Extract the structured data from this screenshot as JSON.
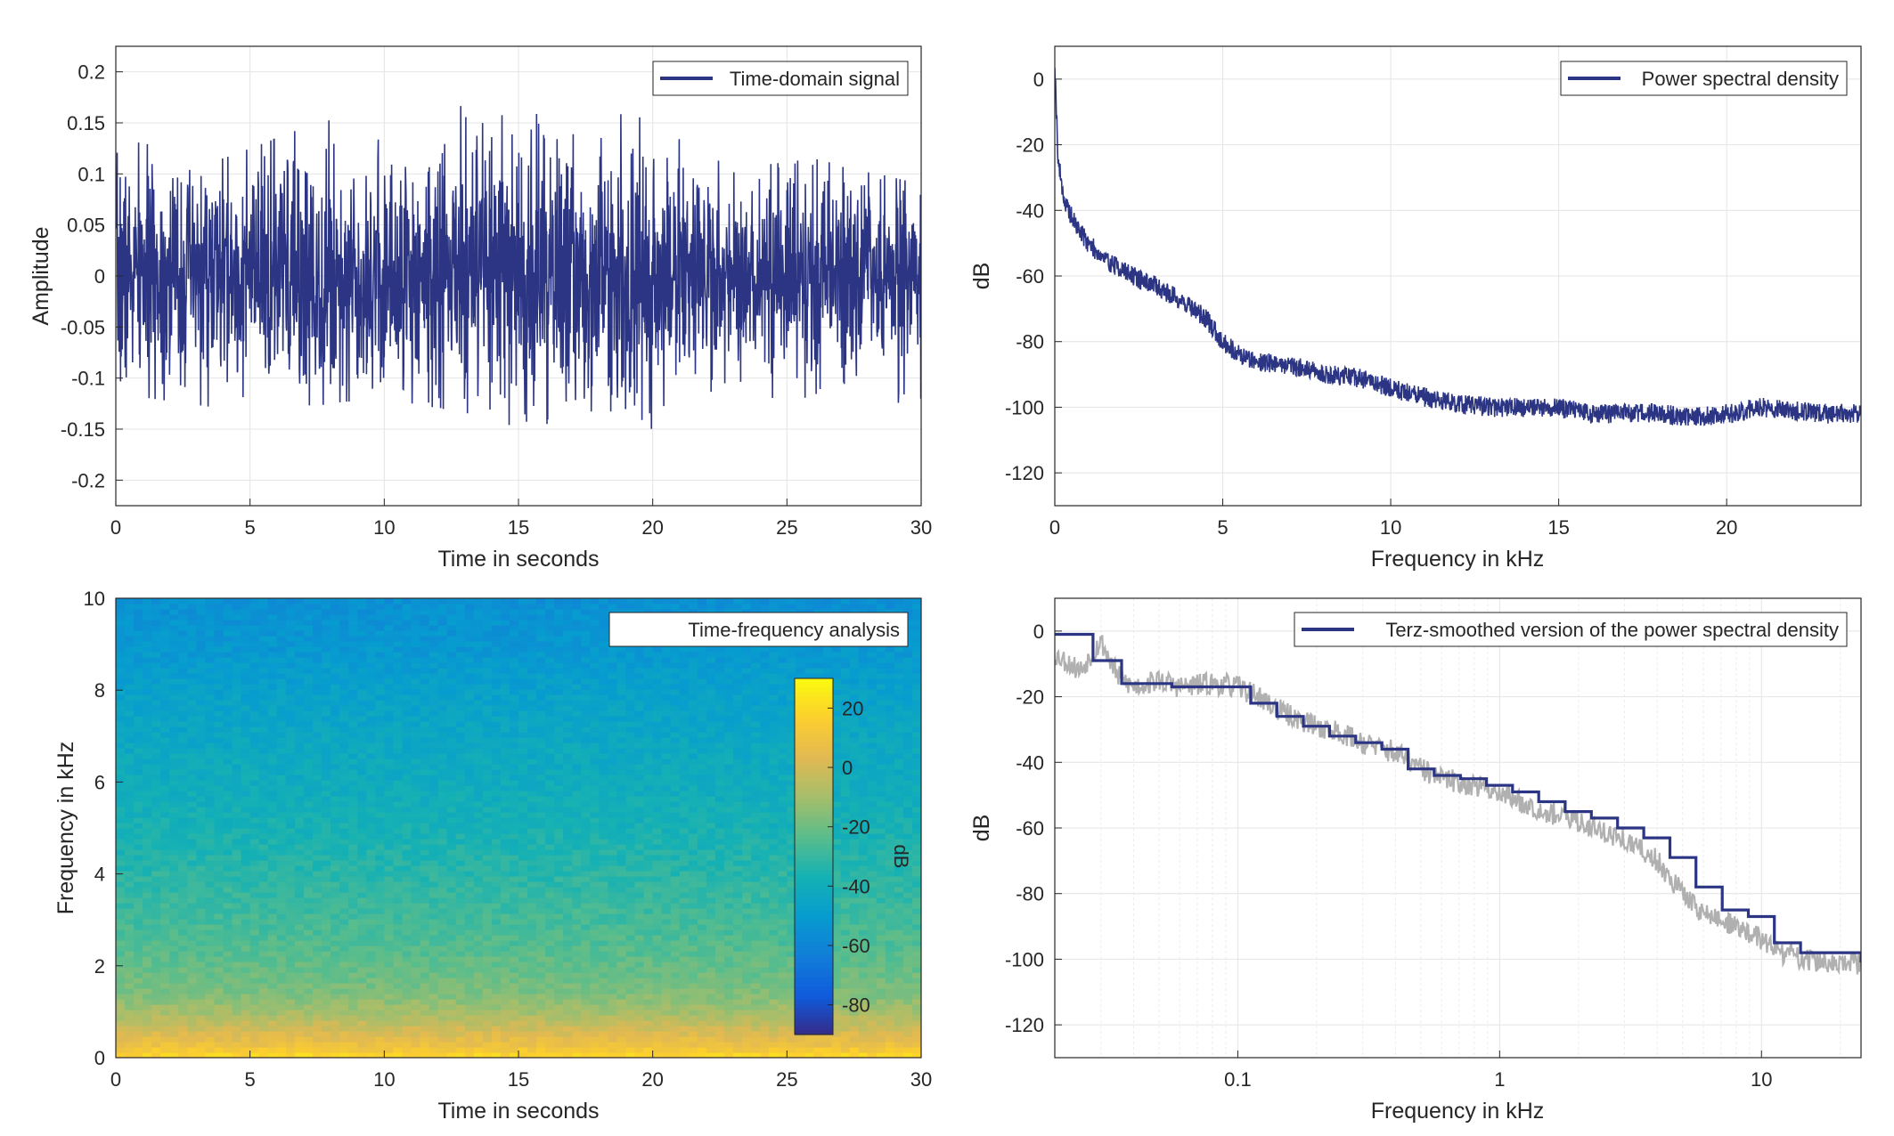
{
  "chart_data": [
    {
      "type": "line",
      "position": "top-left",
      "xlabel": "Time in seconds",
      "ylabel": "Amplitude",
      "xlim": [
        0,
        30
      ],
      "ylim": [
        -0.225,
        0.225
      ],
      "x_ticks": [
        "0",
        "5",
        "10",
        "15",
        "20",
        "25",
        "30"
      ],
      "y_ticks": [
        "-0.2",
        "-0.15",
        "-0.1",
        "-0.05",
        "0",
        "0.05",
        "0.1",
        "0.15",
        "0.2"
      ],
      "grid": true,
      "legend_position": "top-right",
      "series": [
        {
          "name": "Time-domain signal",
          "color": "#2b3583",
          "description_of_values": "noise-like signal, values mostly within about ±0.1, peaks reaching about 0.185 and -0.16",
          "envelope": [
            {
              "t": 0.0,
              "max": 0.135,
              "min": -0.115
            },
            {
              "t": 4.0,
              "max": 0.115,
              "min": -0.13
            },
            {
              "t": 6.5,
              "max": 0.14,
              "min": -0.145
            },
            {
              "t": 7.8,
              "max": 0.165,
              "min": -0.125
            },
            {
              "t": 10.0,
              "max": 0.13,
              "min": -0.12
            },
            {
              "t": 13.2,
              "max": 0.185,
              "min": -0.135
            },
            {
              "t": 16.5,
              "max": 0.15,
              "min": -0.16
            },
            {
              "t": 19.2,
              "max": 0.16,
              "min": -0.162
            },
            {
              "t": 23.0,
              "max": 0.105,
              "min": -0.1
            },
            {
              "t": 26.0,
              "max": 0.115,
              "min": -0.14
            },
            {
              "t": 30.0,
              "max": 0.09,
              "min": -0.12
            }
          ]
        }
      ]
    },
    {
      "type": "line",
      "position": "top-right",
      "xlabel": "Frequency in kHz",
      "ylabel": "dB",
      "xlim": [
        0,
        24
      ],
      "ylim": [
        -130,
        10
      ],
      "x_ticks": [
        "0",
        "5",
        "10",
        "15",
        "20"
      ],
      "y_ticks": [
        "-120",
        "-100",
        "-80",
        "-60",
        "-40",
        "-20",
        "0"
      ],
      "grid": true,
      "legend_position": "top-right",
      "series": [
        {
          "name": "Power spectral density",
          "color": "#2b3583",
          "x": [
            0,
            0.1,
            0.3,
            0.6,
            1.0,
            1.5,
            2.0,
            2.5,
            3.0,
            3.5,
            4.0,
            4.5,
            5.0,
            5.5,
            6.0,
            7.0,
            8.0,
            9.0,
            10.0,
            11.0,
            12.0,
            13.0,
            14.0,
            15.0,
            16.0,
            17.0,
            18.0,
            19.0,
            20.0,
            21.0,
            22.0,
            23.0,
            24.0
          ],
          "y": [
            5,
            -25,
            -38,
            -44,
            -50,
            -55,
            -58,
            -61,
            -63,
            -66,
            -69,
            -73,
            -80,
            -84,
            -86,
            -87,
            -90,
            -91,
            -94,
            -97,
            -99,
            -100,
            -100,
            -100,
            -102,
            -102,
            -102,
            -103,
            -102,
            -100,
            -101,
            -102,
            -102
          ],
          "band_half_width_db": 3
        }
      ]
    },
    {
      "type": "heatmap",
      "position": "bottom-left",
      "xlabel": "Time in seconds",
      "ylabel": "Frequency in kHz",
      "xlim": [
        0,
        30
      ],
      "ylim": [
        0,
        10
      ],
      "x_ticks": [
        "0",
        "5",
        "10",
        "15",
        "20",
        "25",
        "30"
      ],
      "y_ticks": [
        "0",
        "2",
        "4",
        "6",
        "8",
        "10"
      ],
      "legend_position": "top-right",
      "legend_label": "Time-frequency analysis",
      "colorbar": {
        "label": "dB",
        "range": [
          -90,
          30
        ],
        "ticks": [
          "20",
          "0",
          "-20",
          "-40",
          "-60",
          "-80"
        ],
        "colormap": "parula"
      },
      "level_db_by_frequency": {
        "freq_khz": [
          0,
          0.3,
          1.0,
          1.5,
          2.5,
          3.5,
          5.0,
          6.5,
          8.0,
          9.0,
          10.0
        ],
        "db": [
          20,
          8,
          -10,
          -18,
          -25,
          -30,
          -37,
          -42,
          -47,
          -52,
          -55
        ]
      }
    },
    {
      "type": "line",
      "position": "bottom-right",
      "xlabel": "Frequency in kHz",
      "ylabel": "dB",
      "x_scale": "log",
      "xlim": [
        0.02,
        24
      ],
      "ylim": [
        -130,
        10
      ],
      "x_ticks": [
        "0.1",
        "1",
        "10"
      ],
      "y_ticks": [
        "-120",
        "-100",
        "-80",
        "-60",
        "-40",
        "-20",
        "0"
      ],
      "grid": true,
      "legend_position": "top-right",
      "series": [
        {
          "name": "",
          "color": "#b0b0b0",
          "x": [
            0.02,
            0.025,
            0.03,
            0.035,
            0.04,
            0.05,
            0.06,
            0.08,
            0.1,
            0.12,
            0.15,
            0.2,
            0.25,
            0.3,
            0.4,
            0.5,
            0.6,
            0.8,
            1.0,
            1.2,
            1.5,
            2.0,
            2.5,
            3.0,
            3.5,
            4.0,
            5.0,
            6.0,
            8.0,
            10.0,
            12.0,
            15.0,
            20.0,
            24.0
          ],
          "y": [
            -7,
            -12,
            -3,
            -14,
            -17,
            -15,
            -17,
            -16,
            -17,
            -20,
            -25,
            -29,
            -31,
            -34,
            -37,
            -42,
            -45,
            -47,
            -49,
            -52,
            -55,
            -58,
            -61,
            -64,
            -67,
            -70,
            -80,
            -86,
            -90,
            -94,
            -98,
            -100,
            -102,
            -101
          ]
        },
        {
          "name": "Terz-smoothed version of the power spectral density",
          "color": "#2b3583",
          "steps_x": [
            0.02,
            0.028,
            0.036,
            0.045,
            0.056,
            0.071,
            0.089,
            0.112,
            0.141,
            0.178,
            0.224,
            0.282,
            0.355,
            0.447,
            0.562,
            0.708,
            0.891,
            1.12,
            1.41,
            1.78,
            2.24,
            2.82,
            3.55,
            4.47,
            5.62,
            7.08,
            8.91,
            11.2,
            14.1,
            24.0
          ],
          "steps_y": [
            -1,
            -9,
            -16,
            -16,
            -17,
            -17,
            -17,
            -22,
            -26,
            -29,
            -32,
            -34,
            -36,
            -42,
            -44,
            -45,
            -47,
            -49,
            -52,
            -55,
            -57,
            -60,
            -63,
            -69,
            -78,
            -85,
            -87,
            -95,
            -98,
            -101
          ]
        }
      ]
    }
  ]
}
